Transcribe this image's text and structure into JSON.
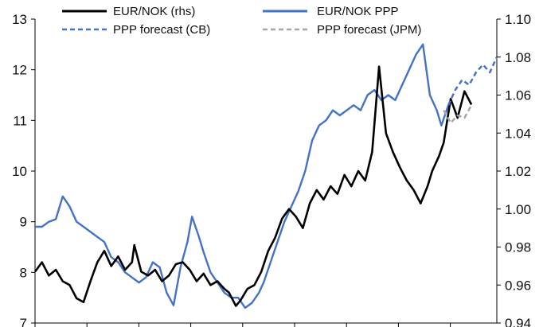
{
  "chart_data": {
    "type": "line",
    "title": "",
    "xlabel": "",
    "ylabel": "",
    "y_left": {
      "range": [
        7,
        13
      ],
      "ticks": [
        "7",
        "8",
        "9",
        "10",
        "11",
        "12",
        "13"
      ]
    },
    "y_right": {
      "range": [
        0.94,
        1.1
      ],
      "ticks": [
        "0.94",
        "0.96",
        "0.98",
        "1.00",
        "1.02",
        "1.04",
        "1.06",
        "1.08",
        "1.10"
      ]
    },
    "x_range": [
      0,
      100
    ],
    "legend": {
      "placement": "top",
      "entries": [
        {
          "label": "EUR/NOK (rhs)",
          "style": "solid",
          "color": "#000000"
        },
        {
          "label": "EUR/NOK PPP",
          "style": "solid",
          "color": "#4472C4"
        },
        {
          "label": "PPP forecast (CB)",
          "style": "dashed",
          "color": "#4472C4"
        },
        {
          "label": "PPP forecast (JPM)",
          "style": "dashed",
          "color": "#A6A6A6"
        }
      ]
    },
    "series": [
      {
        "name": "EUR/NOK (rhs)",
        "axis": "right",
        "color": "#000000",
        "style": "solid",
        "x": [
          0,
          1.5,
          3,
          4.5,
          6,
          7.5,
          9,
          10.5,
          12,
          13.5,
          15,
          16.5,
          18,
          19.5,
          21,
          21.5,
          23,
          24.5,
          26,
          27.5,
          29,
          30.5,
          32,
          33.5,
          35,
          36.5,
          38,
          39.5,
          41,
          42,
          43.5,
          44.5,
          46,
          47.5,
          49,
          50.5,
          52,
          53.5,
          55,
          56.5,
          58,
          59.5,
          61,
          62.5,
          64,
          65.5,
          67,
          68.5,
          70,
          71.5,
          73,
          74.5,
          76,
          77.5,
          79,
          80.5,
          82,
          83.5,
          85,
          86,
          87.5,
          88.5,
          90,
          91.5,
          93,
          94.5
        ],
        "values": [
          0.967,
          0.972,
          0.965,
          0.968,
          0.962,
          0.96,
          0.953,
          0.951,
          0.962,
          0.972,
          0.978,
          0.97,
          0.975,
          0.968,
          0.972,
          0.981,
          0.967,
          0.965,
          0.968,
          0.962,
          0.965,
          0.971,
          0.972,
          0.968,
          0.962,
          0.966,
          0.96,
          0.962,
          0.958,
          0.956,
          0.949,
          0.952,
          0.958,
          0.96,
          0.967,
          0.978,
          0.985,
          0.995,
          1.0,
          0.996,
          0.99,
          1.003,
          1.01,
          1.005,
          1.012,
          1.008,
          1.018,
          1.012,
          1.02,
          1.015,
          1.03,
          1.075,
          1.04,
          1.03,
          1.022,
          1.015,
          1.01,
          1.003,
          1.012,
          1.02,
          1.028,
          1.035,
          1.058,
          1.048,
          1.062,
          1.055
        ]
      },
      {
        "name": "EUR/NOK PPP",
        "axis": "left",
        "color": "#4472C4",
        "style": "solid",
        "x": [
          0,
          1.5,
          3,
          4.5,
          6,
          7.5,
          9,
          10.5,
          12,
          13.5,
          15,
          16.5,
          18,
          19.5,
          21,
          22.5,
          24,
          25.5,
          27,
          28.5,
          30,
          31.5,
          33,
          34,
          35.5,
          36.5,
          38,
          39.5,
          41,
          42.5,
          44,
          45.5,
          47,
          48.5,
          49.5,
          51,
          52.5,
          54,
          55.5,
          57,
          58.5,
          60,
          61.5,
          63,
          64.5,
          66,
          67.5,
          69,
          70.5,
          72,
          73.5,
          75,
          76.5,
          78,
          79.5,
          81,
          82.5,
          84,
          85.5,
          87,
          88,
          89.5
        ],
        "values": [
          8.9,
          8.9,
          9.0,
          9.05,
          9.5,
          9.3,
          9.0,
          8.9,
          8.8,
          8.7,
          8.6,
          8.3,
          8.2,
          8.0,
          7.9,
          7.8,
          7.9,
          8.2,
          8.1,
          7.6,
          7.35,
          8.1,
          8.6,
          9.1,
          8.7,
          8.4,
          8.0,
          7.8,
          7.6,
          7.5,
          7.5,
          7.3,
          7.4,
          7.6,
          7.8,
          8.2,
          8.6,
          9.0,
          9.3,
          9.6,
          10.0,
          10.6,
          10.9,
          11.0,
          11.2,
          11.1,
          11.2,
          11.3,
          11.2,
          11.5,
          11.6,
          11.4,
          11.5,
          11.4,
          11.7,
          12.0,
          12.3,
          12.5,
          11.5,
          11.2,
          10.9,
          11.3
        ]
      },
      {
        "name": "PPP forecast (CB)",
        "axis": "left",
        "color": "#4472C4",
        "style": "dashed",
        "x": [
          89.5,
          91,
          92.5,
          94,
          95.5,
          97,
          98.5,
          100
        ],
        "values": [
          11.3,
          11.6,
          11.8,
          11.7,
          11.95,
          12.1,
          11.95,
          12.25
        ]
      },
      {
        "name": "PPP forecast (JPM)",
        "axis": "left",
        "color": "#A6A6A6",
        "style": "dashed",
        "x": [
          88.5,
          90,
          91.5,
          93,
          94.5
        ],
        "values": [
          11.2,
          10.95,
          11.1,
          11.05,
          11.3
        ]
      }
    ]
  }
}
